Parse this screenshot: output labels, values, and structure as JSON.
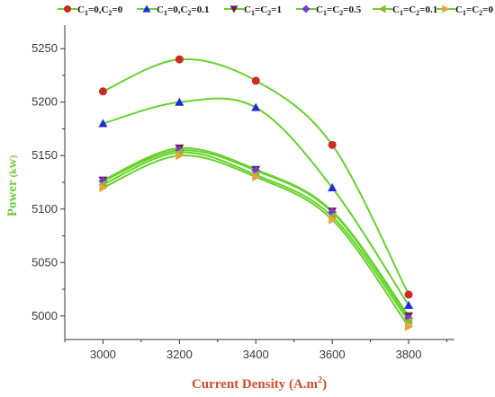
{
  "chart_data": {
    "type": "line",
    "xlabel": "Current Density (A.m",
    "xlabel_sup": "2",
    "xlabel_close": ")",
    "ylabel": "Power",
    "ylabel_unit": "(kW)",
    "xlim": [
      2900,
      3920
    ],
    "ylim": [
      4978,
      5272
    ],
    "xticks": [
      3000,
      3200,
      3400,
      3600,
      3800
    ],
    "yticks": [
      5000,
      5050,
      5100,
      5150,
      5200,
      5250
    ],
    "x": [
      3000,
      3200,
      3400,
      3600,
      3800
    ],
    "legend_position": "top",
    "grid": false,
    "line_color": "#66d22c",
    "series": [
      {
        "name": "C1=0,C2=0",
        "label_main": "C",
        "s1": "1",
        "mid": "=0,C",
        "s2": "2",
        "tail": "=0",
        "marker": "circle",
        "color": "#cc2a24",
        "values": [
          5210,
          5240,
          5220,
          5160,
          5020
        ]
      },
      {
        "name": "C1=0,C2=0.1",
        "label_main": "C",
        "s1": "1",
        "mid": "=0,C",
        "s2": "2",
        "tail": "=0.1",
        "marker": "triangle-up",
        "color": "#1f2ad6",
        "values": [
          5180,
          5200,
          5195,
          5120,
          5010
        ]
      },
      {
        "name": "C1=C2=1",
        "label_main": "C",
        "s1": "1",
        "mid": "=C",
        "s2": "2",
        "tail": "=1",
        "marker": "triangle-down",
        "color": "#6b1f56",
        "values": [
          5127,
          5157,
          5137,
          5098,
          5000
        ]
      },
      {
        "name": "C1=C2=0.5",
        "label_main": "C",
        "s1": "1",
        "mid": "=C",
        "s2": "2",
        "tail": "=0.5",
        "marker": "diamond",
        "color": "#7a3ad8",
        "values": [
          5126,
          5155,
          5136,
          5097,
          4998
        ]
      },
      {
        "name": "C1=C2=0.1",
        "label_main": "C",
        "s1": "1",
        "mid": "=C",
        "s2": "2",
        "tail": "=0.1",
        "marker": "triangle-left",
        "color": "#8fb82a",
        "values": [
          5123,
          5153,
          5132,
          5093,
          4995
        ]
      },
      {
        "name": "C1=C2=0",
        "label_main": "C",
        "s1": "1",
        "mid": "=C",
        "s2": "2",
        "tail": "=0",
        "marker": "triangle-right",
        "color": "#e8a23a",
        "values": [
          5120,
          5150,
          5130,
          5090,
          4990
        ]
      }
    ]
  }
}
